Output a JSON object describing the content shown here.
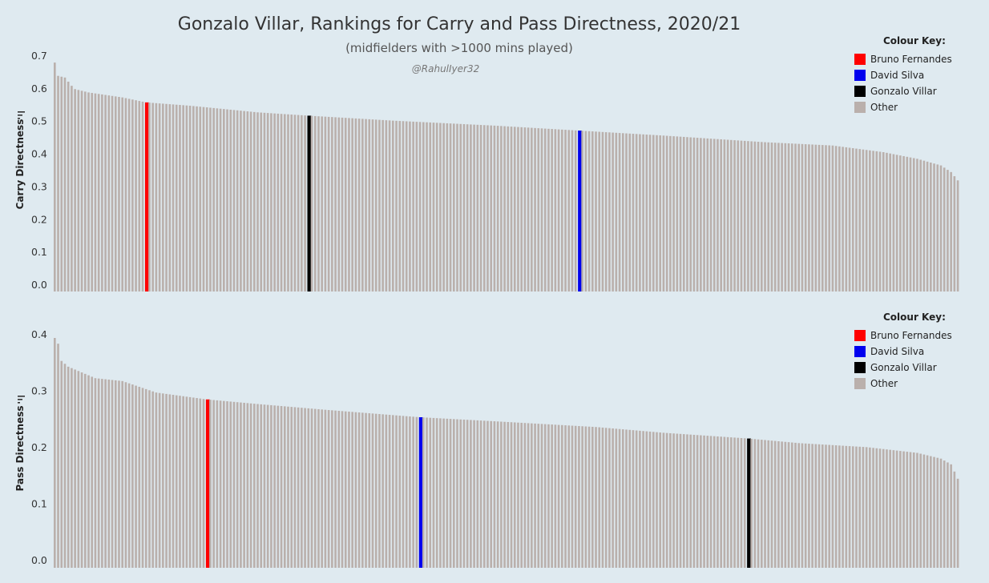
{
  "header": {
    "title": "Gonzalo Villar, Rankings for Carry and Pass Directness, 2020/21",
    "subtitle": "(midfielders with >1000 mins played)",
    "credit": "@RahulIyer32"
  },
  "legend": {
    "title": "Colour Key:",
    "items": [
      {
        "label": "Bruno Fernandes",
        "color": "#ff0000"
      },
      {
        "label": "David Silva",
        "color": "#0000ee"
      },
      {
        "label": "Gonzalo Villar",
        "color": "#000000"
      },
      {
        "label": "Other",
        "color": "#bab0ac"
      }
    ]
  },
  "chart_data": [
    {
      "type": "bar",
      "ylabel": "Carry Directness",
      "ylim": [
        0,
        0.7
      ],
      "yticks": [
        "0.0",
        "0.1",
        "0.2",
        "0.3",
        "0.4",
        "0.5",
        "0.6",
        "0.7"
      ],
      "bar_count": 268,
      "sorted": "descending",
      "highlights": [
        {
          "player": "Bruno Fernandes",
          "rank": 27,
          "value": 0.57
        },
        {
          "player": "Gonzalo Villar",
          "rank": 75,
          "value": 0.53
        },
        {
          "player": "David Silva",
          "rank": 155,
          "value": 0.485
        }
      ],
      "profile": [
        [
          0,
          0.69
        ],
        [
          1,
          0.65
        ],
        [
          3,
          0.645
        ],
        [
          5,
          0.62
        ],
        [
          6,
          0.61
        ],
        [
          10,
          0.6
        ],
        [
          20,
          0.585
        ],
        [
          27,
          0.57
        ],
        [
          40,
          0.56
        ],
        [
          60,
          0.54
        ],
        [
          75,
          0.53
        ],
        [
          100,
          0.515
        ],
        [
          130,
          0.5
        ],
        [
          155,
          0.485
        ],
        [
          180,
          0.47
        ],
        [
          210,
          0.45
        ],
        [
          230,
          0.44
        ],
        [
          245,
          0.42
        ],
        [
          255,
          0.4
        ],
        [
          262,
          0.38
        ],
        [
          265,
          0.36
        ],
        [
          267,
          0.335
        ]
      ]
    },
    {
      "type": "bar",
      "ylabel": "Pass Directness",
      "ylim": [
        0,
        0.4
      ],
      "yticks": [
        "0.0",
        "0.1",
        "0.2",
        "0.3",
        "0.4"
      ],
      "bar_count": 268,
      "sorted": "descending",
      "highlights": [
        {
          "player": "Bruno Fernandes",
          "rank": 45,
          "value": 0.293
        },
        {
          "player": "David Silva",
          "rank": 108,
          "value": 0.262
        },
        {
          "player": "Gonzalo Villar",
          "rank": 205,
          "value": 0.225
        }
      ],
      "profile": [
        [
          0,
          0.4
        ],
        [
          1,
          0.39
        ],
        [
          2,
          0.36
        ],
        [
          4,
          0.35
        ],
        [
          8,
          0.34
        ],
        [
          12,
          0.33
        ],
        [
          20,
          0.325
        ],
        [
          25,
          0.315
        ],
        [
          30,
          0.305
        ],
        [
          45,
          0.293
        ],
        [
          60,
          0.285
        ],
        [
          80,
          0.275
        ],
        [
          108,
          0.262
        ],
        [
          130,
          0.255
        ],
        [
          160,
          0.245
        ],
        [
          180,
          0.235
        ],
        [
          205,
          0.225
        ],
        [
          220,
          0.217
        ],
        [
          240,
          0.21
        ],
        [
          255,
          0.2
        ],
        [
          262,
          0.19
        ],
        [
          265,
          0.18
        ],
        [
          267,
          0.155
        ]
      ]
    }
  ]
}
